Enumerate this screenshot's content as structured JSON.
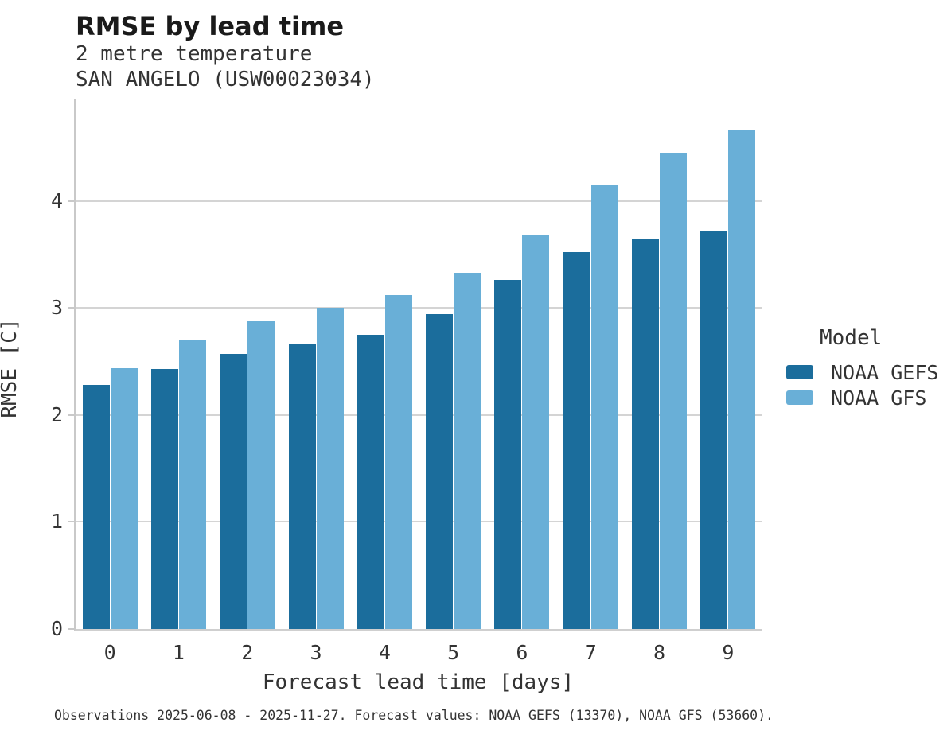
{
  "header": {
    "title": "RMSE by lead time",
    "subtitle": "2 metre temperature",
    "station": "SAN ANGELO (USW00023034)"
  },
  "chart_data": {
    "type": "bar",
    "title": "RMSE by lead time",
    "subtitle": "2 metre temperature",
    "station": "SAN ANGELO (USW00023034)",
    "categories": [
      "0",
      "1",
      "2",
      "3",
      "4",
      "5",
      "6",
      "7",
      "8",
      "9"
    ],
    "series": [
      {
        "name": "NOAA GEFS",
        "color": "#1b6d9c",
        "values": [
          2.28,
          2.43,
          2.57,
          2.67,
          2.75,
          2.94,
          3.26,
          3.52,
          3.64,
          3.72
        ]
      },
      {
        "name": "NOAA GFS",
        "color": "#69afd7",
        "values": [
          2.44,
          2.7,
          2.88,
          3.0,
          3.12,
          3.33,
          3.68,
          4.15,
          4.45,
          4.67
        ]
      }
    ],
    "xlabel": "Forecast lead time [days]",
    "ylabel": "RMSE [C]",
    "ylim": [
      0,
      4.95
    ],
    "yticks": [
      0,
      1,
      2,
      3,
      4
    ],
    "grid": "horizontal",
    "legend": {
      "title": "Model",
      "position": "right"
    },
    "colors": {
      "gridline": "#d4d4d4",
      "axis": "#c9c9c9",
      "background": "#ffffff"
    }
  },
  "footer": {
    "note": "Observations 2025-06-08 - 2025-11-27. Forecast values: NOAA GEFS (13370), NOAA GFS (53660)."
  }
}
